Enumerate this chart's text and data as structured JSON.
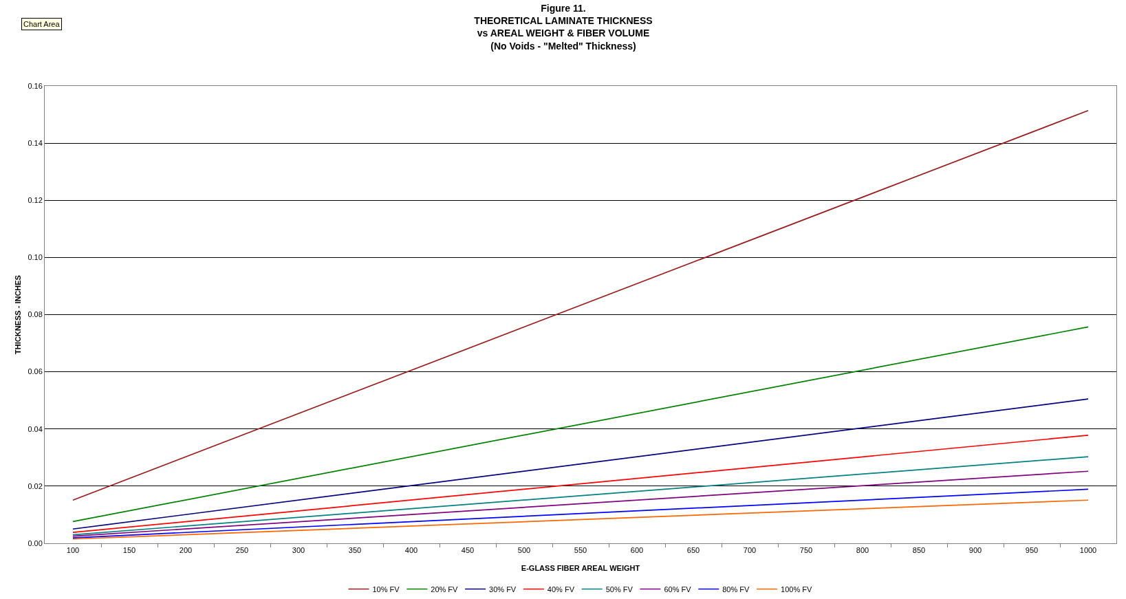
{
  "chart_data": {
    "type": "line",
    "title": "Figure 11.\nTHEORETICAL LAMINATE THICKNESS\nvs AREAL WEIGHT & FIBER VOLUME\n(No Voids - \"Melted\" Thickness)",
    "xlabel": "E-GLASS FIBER AREAL WEIGHT",
    "ylabel": "THICKNESS - INCHES",
    "annotations": [
      "Chart Area"
    ],
    "x": [
      100,
      1000
    ],
    "xlim": [
      75,
      1025
    ],
    "xticks": [
      100,
      {
        "value": 125,
        "label": null
      },
      150,
      {
        "value": 175,
        "label": null
      },
      200,
      {
        "value": 225,
        "label": null
      },
      250,
      {
        "value": 275,
        "label": null
      },
      300,
      {
        "value": 325,
        "label": null
      },
      350,
      {
        "value": 375,
        "label": null
      },
      400,
      {
        "value": 425,
        "label": null
      },
      450,
      {
        "value": 475,
        "label": null
      },
      500,
      {
        "value": 525,
        "label": null
      },
      550,
      {
        "value": 575,
        "label": null
      },
      600,
      {
        "value": 625,
        "label": null
      },
      650,
      {
        "value": 675,
        "label": null
      },
      700,
      {
        "value": 725,
        "label": null
      },
      750,
      {
        "value": 775,
        "label": null
      },
      800,
      {
        "value": 825,
        "label": null
      },
      850,
      {
        "value": 875,
        "label": null
      },
      900,
      {
        "value": 925,
        "label": null
      },
      950,
      {
        "value": 975,
        "label": null
      },
      1000
    ],
    "ylim": [
      0,
      0.16
    ],
    "yticks": [
      {
        "value": 0,
        "label": "0.00"
      },
      0.02,
      0.04,
      0.06,
      0.08,
      {
        "value": 0.1,
        "label": "0.10"
      },
      0.12,
      0.14,
      0.16
    ],
    "grid": "y",
    "legend": "bottom",
    "marker": "none",
    "line_style": "solid",
    "series": [
      {
        "name": "10% FV",
        "color": "#991c1c",
        "values": [
          0.0151,
          0.1514
        ]
      },
      {
        "name": "20% FV",
        "color": "#008000",
        "values": [
          0.0076,
          0.0757
        ]
      },
      {
        "name": "30% FV",
        "color": "#000080",
        "values": [
          0.005,
          0.0505
        ]
      },
      {
        "name": "40% FV",
        "color": "#ff0000",
        "values": [
          0.0038,
          0.0378
        ]
      },
      {
        "name": "50% FV",
        "color": "#008080",
        "values": [
          0.003,
          0.0303
        ]
      },
      {
        "name": "60% FV",
        "color": "#800080",
        "values": [
          0.0025,
          0.0252
        ]
      },
      {
        "name": "80% FV",
        "color": "#0000ff",
        "values": [
          0.0019,
          0.0189
        ]
      },
      {
        "name": "100% FV",
        "color": "#ff6600",
        "values": [
          0.0015,
          0.0151
        ]
      }
    ]
  }
}
